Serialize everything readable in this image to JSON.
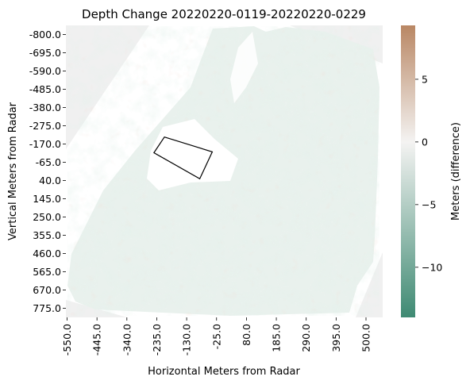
{
  "chart_data": {
    "type": "heatmap",
    "title": "Depth Change 20220220-0119-20220220-0229",
    "xlabel": "Horizontal Meters from Radar",
    "ylabel": "Vertical Meters from Radar",
    "x_ticks": [
      "-550.0",
      "-445.0",
      "-340.0",
      "-235.0",
      "-130.0",
      "-25.0",
      "80.0",
      "185.0",
      "290.0",
      "395.0",
      "500.0"
    ],
    "y_ticks": [
      "-800.0",
      "-695.0",
      "-590.0",
      "-485.0",
      "-380.0",
      "-275.0",
      "-170.0",
      "-65.0",
      "40.0",
      "145.0",
      "250.0",
      "355.0",
      "460.0",
      "565.0",
      "670.0",
      "775.0"
    ],
    "colorbar": {
      "label": "Meters (difference)",
      "ticks": [
        "5",
        "0",
        "−5",
        "−10"
      ],
      "tick_values": [
        5,
        0,
        -5,
        -10
      ],
      "range": [
        -14,
        9.3
      ],
      "colors": [
        "#3f8a73",
        "#f4f3f2",
        "#b98764"
      ]
    },
    "outline_polygon_data": [
      [
        -245,
        -120
      ],
      [
        -208,
        -210
      ],
      [
        -40,
        -125
      ],
      [
        -84,
        30
      ]
    ],
    "no_data_color": "#f0f0f0"
  }
}
